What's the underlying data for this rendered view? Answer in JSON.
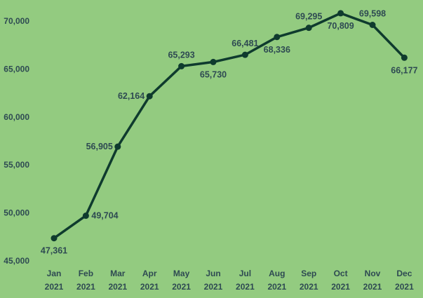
{
  "colors": {
    "background": "#93cb80",
    "line": "#0f3b2e",
    "text": "#2e4a52"
  },
  "chart_data": {
    "type": "line",
    "title": "",
    "xlabel": "",
    "ylabel": "",
    "categories": [
      [
        "Jan",
        "2021"
      ],
      [
        "Feb",
        "2021"
      ],
      [
        "Mar",
        "2021"
      ],
      [
        "Apr",
        "2021"
      ],
      [
        "May",
        "2021"
      ],
      [
        "Jun",
        "2021"
      ],
      [
        "Jul",
        "2021"
      ],
      [
        "Aug",
        "2021"
      ],
      [
        "Sep",
        "2021"
      ],
      [
        "Oct",
        "2021"
      ],
      [
        "Nov",
        "2021"
      ],
      [
        "Dec",
        "2021"
      ]
    ],
    "values": [
      47361,
      49704,
      56905,
      62164,
      65293,
      65730,
      66481,
      68336,
      69295,
      70809,
      69598,
      66177
    ],
    "data_labels": [
      "47,361",
      "49,704",
      "56,905",
      "62,164",
      "65,293",
      "65,730",
      "66,481",
      "68,336",
      "69,295",
      "70,809",
      "69,598",
      "66,177"
    ],
    "label_positions": [
      "below",
      "right",
      "left",
      "left",
      "above",
      "below",
      "above",
      "below",
      "above",
      "below",
      "above",
      "below"
    ],
    "ylim": [
      45000,
      70000
    ],
    "yticks": [
      45000,
      50000,
      55000,
      60000,
      65000,
      70000
    ],
    "ytick_labels": [
      "45,000",
      "50,000",
      "55,000",
      "60,000",
      "65,000",
      "70,000"
    ],
    "grid": false,
    "legend": "none"
  }
}
